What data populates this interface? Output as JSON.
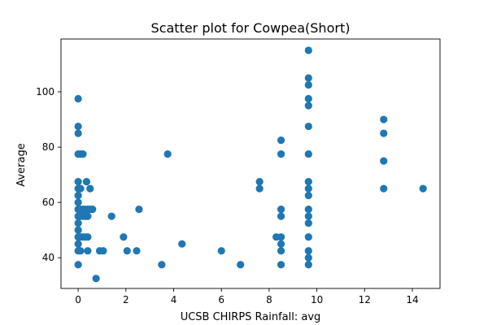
{
  "chart_data": {
    "type": "scatter",
    "title": "Scatter plot for Cowpea(Short)",
    "xlabel": "UCSB CHIRPS Rainfall: avg",
    "ylabel": "Average",
    "xlim": [
      -0.72,
      15.16
    ],
    "ylim": [
      28.9,
      119.1
    ],
    "xticks": [
      0,
      2,
      4,
      6,
      8,
      10,
      12,
      14
    ],
    "yticks": [
      40,
      60,
      80,
      100
    ],
    "grid": false,
    "legend": "none",
    "marker_color": "#1f77b4",
    "series": [
      {
        "points": [
          [
            0,
            37.5
          ],
          [
            0,
            42.5
          ],
          [
            0,
            45
          ],
          [
            0,
            47.5
          ],
          [
            0,
            50
          ],
          [
            0,
            52.5
          ],
          [
            0,
            55
          ],
          [
            0,
            57.5
          ],
          [
            0,
            60
          ],
          [
            0,
            62.5
          ],
          [
            0,
            65
          ],
          [
            0,
            67.5
          ],
          [
            0,
            77.5
          ],
          [
            0,
            85
          ],
          [
            0,
            87.5
          ],
          [
            0,
            97.5
          ],
          [
            0.1,
            42.5
          ],
          [
            0.1,
            47.5
          ],
          [
            0.1,
            55
          ],
          [
            0.1,
            57.5
          ],
          [
            0.1,
            65
          ],
          [
            0.1,
            77.5
          ],
          [
            0.2,
            47.5
          ],
          [
            0.2,
            55
          ],
          [
            0.2,
            57.5
          ],
          [
            0.2,
            77.5
          ],
          [
            0.3,
            47.5
          ],
          [
            0.3,
            55
          ],
          [
            0.3,
            57.5
          ],
          [
            0.35,
            55
          ],
          [
            0.35,
            67.5
          ],
          [
            0.4,
            42.5
          ],
          [
            0.4,
            47.5
          ],
          [
            0.4,
            55
          ],
          [
            0.4,
            57.5
          ],
          [
            0.5,
            57.5
          ],
          [
            0.5,
            65
          ],
          [
            0.6,
            57.5
          ],
          [
            0.75,
            32.5
          ],
          [
            0.9,
            42.5
          ],
          [
            1.05,
            42.5
          ],
          [
            1.4,
            55
          ],
          [
            1.9,
            47.5
          ],
          [
            2.05,
            42.5
          ],
          [
            2.45,
            42.5
          ],
          [
            2.55,
            57.5
          ],
          [
            3.5,
            37.5
          ],
          [
            3.75,
            77.5
          ],
          [
            4.35,
            45
          ],
          [
            6.0,
            42.5
          ],
          [
            6.8,
            37.5
          ],
          [
            7.6,
            65
          ],
          [
            7.6,
            67.5
          ],
          [
            8.3,
            47.5
          ],
          [
            8.5,
            37.5
          ],
          [
            8.5,
            42.5
          ],
          [
            8.5,
            45
          ],
          [
            8.5,
            47.5
          ],
          [
            8.5,
            55
          ],
          [
            8.5,
            57.5
          ],
          [
            8.5,
            77.5
          ],
          [
            8.5,
            82.5
          ],
          [
            9.65,
            37.5
          ],
          [
            9.65,
            40
          ],
          [
            9.65,
            42.5
          ],
          [
            9.65,
            47.5
          ],
          [
            9.65,
            52.5
          ],
          [
            9.65,
            55
          ],
          [
            9.65,
            57.5
          ],
          [
            9.65,
            62.5
          ],
          [
            9.65,
            65
          ],
          [
            9.65,
            67.5
          ],
          [
            9.65,
            77.5
          ],
          [
            9.65,
            87.5
          ],
          [
            9.65,
            95
          ],
          [
            9.65,
            97.5
          ],
          [
            9.65,
            102.5
          ],
          [
            9.65,
            105
          ],
          [
            9.65,
            115
          ],
          [
            12.8,
            65
          ],
          [
            12.8,
            75
          ],
          [
            12.8,
            85
          ],
          [
            12.8,
            90
          ],
          [
            14.45,
            65
          ]
        ]
      }
    ]
  }
}
